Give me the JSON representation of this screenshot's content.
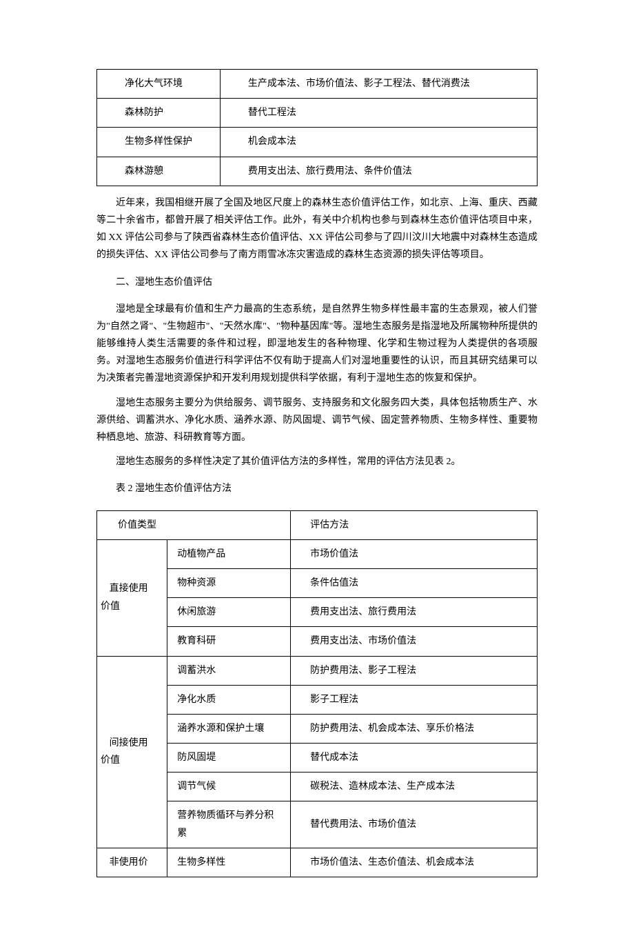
{
  "table1": {
    "rows": [
      {
        "label": "净化大气环境",
        "methods": "生产成本法、市场价值法、影子工程法、替代消费法"
      },
      {
        "label": "森林防护",
        "methods": "替代工程法"
      },
      {
        "label": "生物多样性保护",
        "methods": "机会成本法"
      },
      {
        "label": "森林游憩",
        "methods": "费用支出法、旅行费用法、条件价值法"
      }
    ]
  },
  "paragraphs": {
    "p1": "近年来，我国相继开展了全国及地区尺度上的森林生态价值评估工作，如北京、上海、重庆、西藏等二十余省市，都曾开展了相关评估工作。此外，有关中介机构也参与到森林生态价值评估项目中来，如 XX 评估公司参与了陕西省森林生态价值评估、XX 评估公司参与了四川汶川大地震中对森林生态造成的损失评估、XX 评估公司参与了南方雨雪冰冻灾害造成的森林生态资源的损失评估等项目。",
    "section_title": "二、湿地生态价值评估",
    "p2": "湿地是全球最有价值和生产力最高的生态系统，是自然界生物多样性最丰富的生态景观，被人们誉为\"自然之肾\"、\"生物超市\"、\"天然水库\"、\"物种基因库\"等。湿地生态服务是指湿地及所属物种所提供的能够维持人类生活需要的条件和过程，即湿地发生的各种物理、化学和生物过程为人类提供的各项服务。对湿地生态服务价值进行科学评估不仅有助于提高人们对湿地重要性的认识，而且其研究结果可以为决策者完善湿地资源保护和开发利用规划提供科学依据，有利于湿地生态的恢复和保护。",
    "p3": "湿地生态服务主要分为供给服务、调节服务、支持服务和文化服务四大类，具体包括物质生产、水源供给、调蓄洪水、净化水质、涵养水源、防风固堤、调节气候、固定营养物质、生物多样性、重要物种栖息地、旅游、科研教育等方面。",
    "p4": "湿地生态服务的多样性决定了其价值评估方法的多样性，常用的评估方法见表 2。",
    "table2_caption": "表 2  湿地生态价值评估方法"
  },
  "table2": {
    "header": {
      "col1": "价值类型",
      "col2": "评估方法"
    },
    "groups": [
      {
        "category_line1": "直接使用",
        "category_line2": "价值",
        "rows": [
          {
            "sub": "动植物产品",
            "method": "市场价值法"
          },
          {
            "sub": "物种资源",
            "method": "条件估值法"
          },
          {
            "sub": "休闲旅游",
            "method": "费用支出法、旅行费用法"
          },
          {
            "sub": "教育科研",
            "method": "费用支出法、市场价值法"
          }
        ]
      },
      {
        "category_line1": "间接使用",
        "category_line2": "价值",
        "rows": [
          {
            "sub": "调蓄洪水",
            "method": "防护费用法、影子工程法"
          },
          {
            "sub": "净化水质",
            "method": "影子工程法"
          },
          {
            "sub": "涵养水源和保护土壤",
            "method": "防护费用法、机会成本法、享乐价格法"
          },
          {
            "sub": "防风固堤",
            "method": "替代成本法"
          },
          {
            "sub": "调节气候",
            "method": "碳税法、造林成本法、生产成本法"
          },
          {
            "sub": "营养物质循环与养分积累",
            "method": "替代费用法、市场价值法"
          }
        ]
      },
      {
        "category_line1": "非使用价",
        "category_line2": "",
        "rows": [
          {
            "sub": "生物多样性",
            "method": "市场价值法、生态价值法、机会成本法"
          }
        ]
      }
    ]
  }
}
